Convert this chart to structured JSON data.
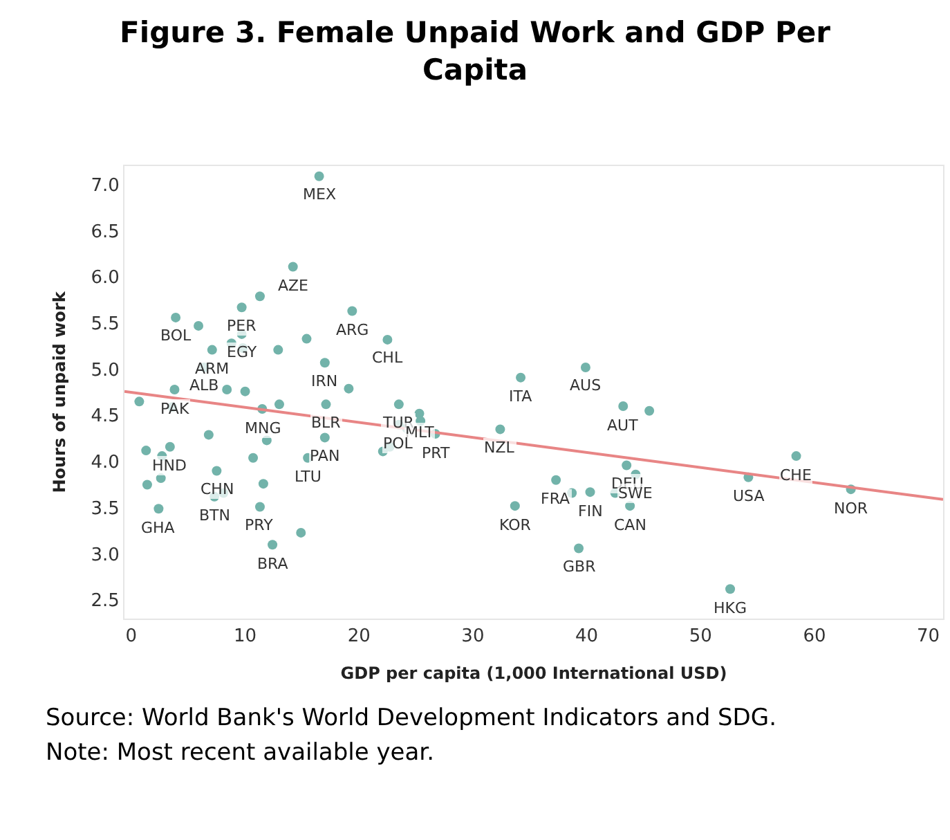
{
  "chart_data": {
    "type": "scatter",
    "title": "Figure 3. Female Unpaid Work and GDP Per Capita",
    "xlabel": "GDP per capita (1,000 International USD)",
    "ylabel": "Hours of unpaid work",
    "xlim": [
      -0.6,
      71.3
    ],
    "xticks": [
      0,
      10,
      20,
      30,
      40,
      50,
      60,
      70
    ],
    "ylim": [
      2.3,
      7.2
    ],
    "yticks": [
      2.5,
      {
        "value": 3,
        "label": "3.0"
      },
      3.5,
      {
        "value": 4,
        "label": "4.0"
      },
      4.5,
      {
        "value": 5,
        "label": "5.0"
      },
      5.5,
      {
        "value": 6,
        "label": "6.0"
      },
      6.5,
      {
        "value": 7,
        "label": "7.0"
      }
    ],
    "series": [
      {
        "marker": "circle",
        "color": "#72b3aa",
        "x": [
          16.5,
          14.2,
          11.3,
          9.7,
          3.9,
          5.9,
          15.4,
          9.7,
          8.8,
          9.8,
          7.1,
          12.9,
          6.4,
          19.4,
          17.0,
          19.1,
          3.8,
          8.4,
          10.0,
          0.7,
          3.6,
          13.0,
          11.5,
          17.1,
          6.8,
          11.9,
          17.0,
          1.3,
          3.4,
          2.7,
          10.7,
          15.5,
          7.5,
          1.4,
          2.6,
          11.6,
          7.3,
          8.1,
          2.4,
          11.3,
          14.9,
          12.4,
          22.5,
          23.5,
          25.3,
          25.4,
          23.5,
          24.2,
          26.7,
          22.1,
          22.7,
          34.2,
          39.9,
          43.2,
          45.5,
          32.4,
          37.3,
          43.5,
          44.3,
          38.7,
          40.3,
          42.5,
          43.8,
          33.7,
          39.3,
          58.4,
          54.2,
          63.2,
          52.6
        ],
        "values": [
          7.09,
          6.11,
          5.79,
          5.67,
          5.56,
          5.47,
          5.33,
          5.38,
          5.28,
          5.23,
          5.21,
          5.21,
          5.02,
          5.63,
          5.07,
          4.79,
          4.78,
          4.78,
          4.76,
          4.65,
          4.59,
          4.62,
          4.57,
          4.62,
          4.29,
          4.23,
          4.26,
          4.12,
          4.16,
          4.06,
          4.04,
          4.04,
          3.9,
          3.75,
          3.82,
          3.76,
          3.62,
          3.66,
          3.49,
          3.51,
          3.23,
          3.1,
          5.32,
          4.62,
          4.52,
          4.44,
          4.4,
          4.36,
          4.3,
          4.11,
          4.16,
          4.91,
          5.02,
          4.6,
          4.55,
          4.35,
          3.8,
          3.96,
          3.86,
          3.66,
          3.67,
          3.66,
          3.52,
          3.52,
          3.06,
          4.06,
          3.83,
          3.7,
          2.62
        ]
      },
      {
        "type": "line",
        "color": "#e88585",
        "x": [
          -0.6,
          71.3
        ],
        "values": [
          4.76,
          3.59
        ]
      }
    ],
    "annotations": [
      {
        "text": "MEX",
        "x": 16.5,
        "y": 7.09
      },
      {
        "text": "AZE",
        "x": 14.2,
        "y": 6.11
      },
      {
        "text": "PER",
        "x": 9.7,
        "y": 5.67
      },
      {
        "text": "BOL",
        "x": 3.9,
        "y": 5.56
      },
      {
        "text": "EGY",
        "x": 9.7,
        "y": 5.38
      },
      {
        "text": "ARM",
        "x": 7.1,
        "y": 5.21
      },
      {
        "text": "ALB",
        "x": 6.4,
        "y": 5.02
      },
      {
        "text": "ARG",
        "x": 19.4,
        "y": 5.63
      },
      {
        "text": "IRN",
        "x": 17.0,
        "y": 5.07
      },
      {
        "text": "PAK",
        "x": 3.8,
        "y": 4.78
      },
      {
        "text": "MNG",
        "x": 11.5,
        "y": 4.57
      },
      {
        "text": "BLR",
        "x": 17.1,
        "y": 4.62
      },
      {
        "text": "PAN",
        "x": 17.0,
        "y": 4.26
      },
      {
        "text": "HND",
        "x": 3.4,
        "y": 4.16
      },
      {
        "text": "LTU",
        "x": 15.5,
        "y": 4.04
      },
      {
        "text": "CHN",
        "x": 7.5,
        "y": 3.9
      },
      {
        "text": "BTN",
        "x": 7.3,
        "y": 3.62
      },
      {
        "text": "GHA",
        "x": 2.4,
        "y": 3.49
      },
      {
        "text": "PRY",
        "x": 11.3,
        "y": 3.51
      },
      {
        "text": "BRA",
        "x": 12.4,
        "y": 3.1
      },
      {
        "text": "CHL",
        "x": 22.5,
        "y": 5.32
      },
      {
        "text": "TUR",
        "x": 23.5,
        "y": 4.62
      },
      {
        "text": "MLT",
        "x": 25.3,
        "y": 4.52
      },
      {
        "text": "POL",
        "x": 23.5,
        "y": 4.4
      },
      {
        "text": "PRT",
        "x": 26.7,
        "y": 4.3
      },
      {
        "text": "ITA",
        "x": 34.2,
        "y": 4.91
      },
      {
        "text": "AUS",
        "x": 39.9,
        "y": 5.02
      },
      {
        "text": "AUT",
        "x": 43.2,
        "y": 4.6
      },
      {
        "text": "NZL",
        "x": 32.4,
        "y": 4.35
      },
      {
        "text": "FRA",
        "x": 37.3,
        "y": 3.8
      },
      {
        "text": "DEU",
        "x": 43.5,
        "y": 3.96
      },
      {
        "text": "SWE",
        "x": 44.3,
        "y": 3.86
      },
      {
        "text": "FIN",
        "x": 40.3,
        "y": 3.67
      },
      {
        "text": "CAN",
        "x": 43.8,
        "y": 3.52
      },
      {
        "text": "KOR",
        "x": 33.7,
        "y": 3.52
      },
      {
        "text": "GBR",
        "x": 39.3,
        "y": 3.06
      },
      {
        "text": "CHE",
        "x": 58.4,
        "y": 4.06
      },
      {
        "text": "USA",
        "x": 54.2,
        "y": 3.83
      },
      {
        "text": "NOR",
        "x": 63.2,
        "y": 3.7
      },
      {
        "text": "HKG",
        "x": 52.6,
        "y": 2.62
      },
      "Source: World Bank's World Development Indicators and SDG.",
      "Note: Most recent available year."
    ]
  }
}
